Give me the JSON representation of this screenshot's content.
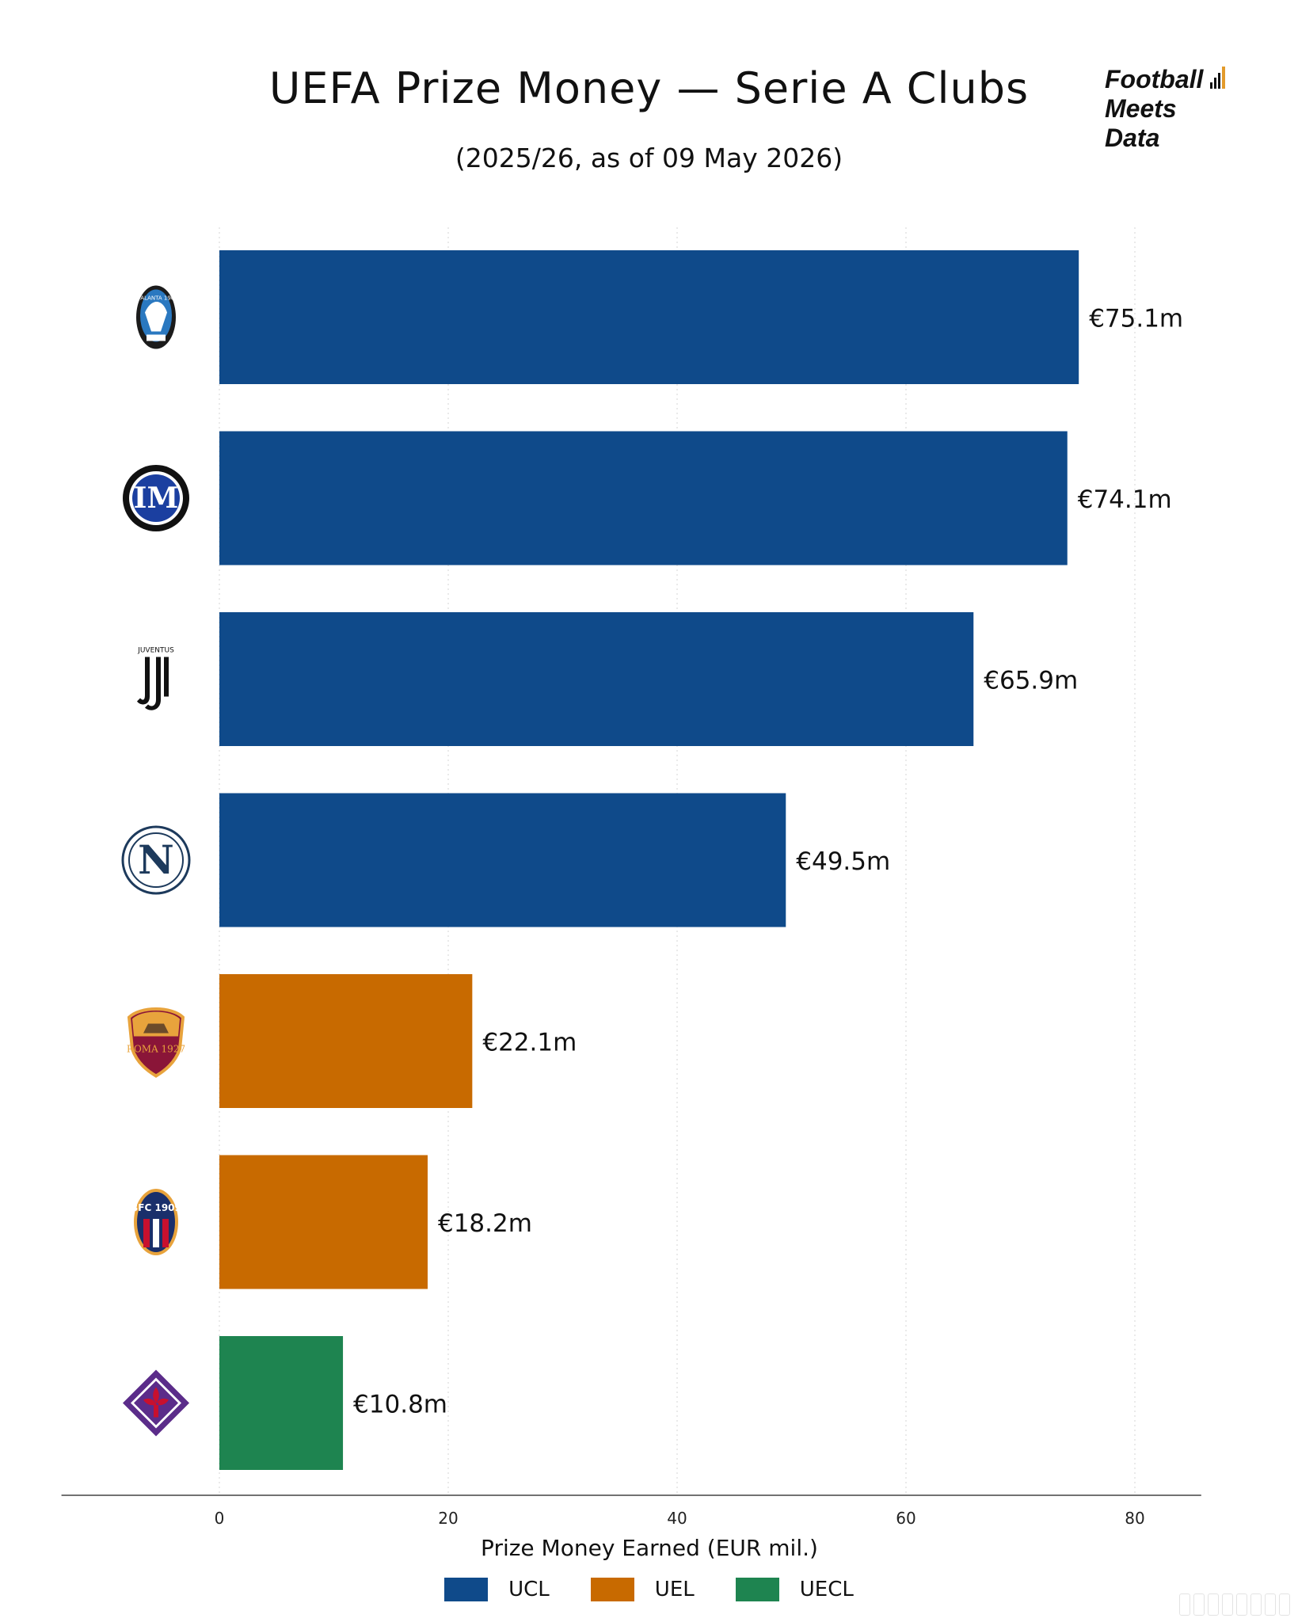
{
  "header": {
    "title": "UEFA Prize Money — Serie A Clubs",
    "subtitle": "(2025/26, as of 09 May 2026)"
  },
  "brand": {
    "line1": "Football",
    "line2": "Meets",
    "line3": "Data",
    "bar_colors": [
      "#111111",
      "#111111",
      "#111111",
      "#e39a2b"
    ]
  },
  "chart_data": {
    "type": "bar",
    "orientation": "horizontal",
    "title": "UEFA Prize Money — Serie A Clubs",
    "subtitle": "(2025/26, as of 09 May 2026)",
    "xlabel": "Prize Money Earned (EUR mil.)",
    "ylabel": "",
    "xlim": [
      -14,
      86
    ],
    "xticks": [
      0,
      20,
      40,
      60,
      80
    ],
    "grid": "vertical dotted",
    "categories": [
      "Atalanta",
      "Inter",
      "Juventus",
      "Napoli",
      "Roma",
      "Bologna",
      "Fiorentina"
    ],
    "values": [
      75.1,
      74.1,
      65.9,
      49.5,
      22.1,
      18.2,
      10.8
    ],
    "value_labels": [
      "€75.1m",
      "€74.1m",
      "€65.9m",
      "€49.5m",
      "€22.1m",
      "€18.2m",
      "€10.8m"
    ],
    "competition": [
      "UCL",
      "UCL",
      "UCL",
      "UCL",
      "UEL",
      "UEL",
      "UECL"
    ],
    "logo_icons": [
      "atalanta-crest-icon",
      "inter-crest-icon",
      "juventus-crest-icon",
      "napoli-crest-icon",
      "roma-crest-icon",
      "bologna-crest-icon",
      "fiorentina-crest-icon"
    ],
    "logo_texts": [
      "ATALANTA 1907",
      "IM",
      "JUVENTUS",
      "N",
      "ROMA 1927",
      "BFC 1909",
      ""
    ],
    "legend": {
      "position": "bottom-center",
      "entries": [
        {
          "name": "UCL",
          "color": "#0f4a8a"
        },
        {
          "name": "UEL",
          "color": "#c86a00"
        },
        {
          "name": "UECL",
          "color": "#1e8450"
        }
      ]
    }
  }
}
